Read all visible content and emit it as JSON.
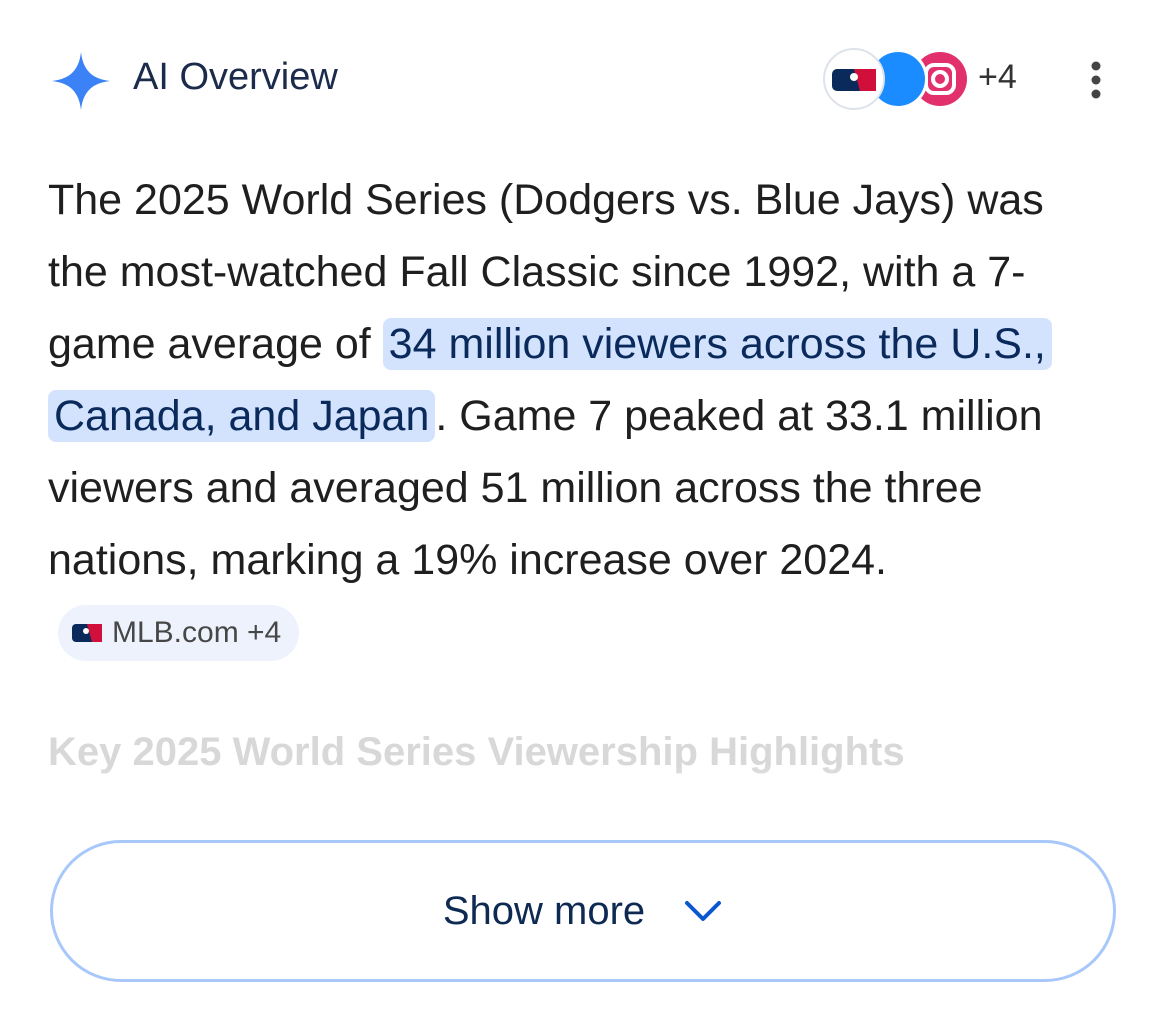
{
  "header": {
    "title": "AI Overview",
    "sources_more": "+4"
  },
  "summary": {
    "before": "The 2025 World Series (Dodgers vs. Blue Jays) was the most-watched Fall Classic since 1992, with a 7-game average of ",
    "highlight": "34 million viewers across the U.S., Canada, and Japan",
    "after": ". Game 7 peaked at 33.1 million viewers and averaged 51 million across the three nations, marking a 19% increase over 2024.",
    "citation": "MLB.com +4"
  },
  "section": {
    "heading": "Key 2025 World Series Viewership Highlights"
  },
  "button": {
    "label": "Show more"
  }
}
